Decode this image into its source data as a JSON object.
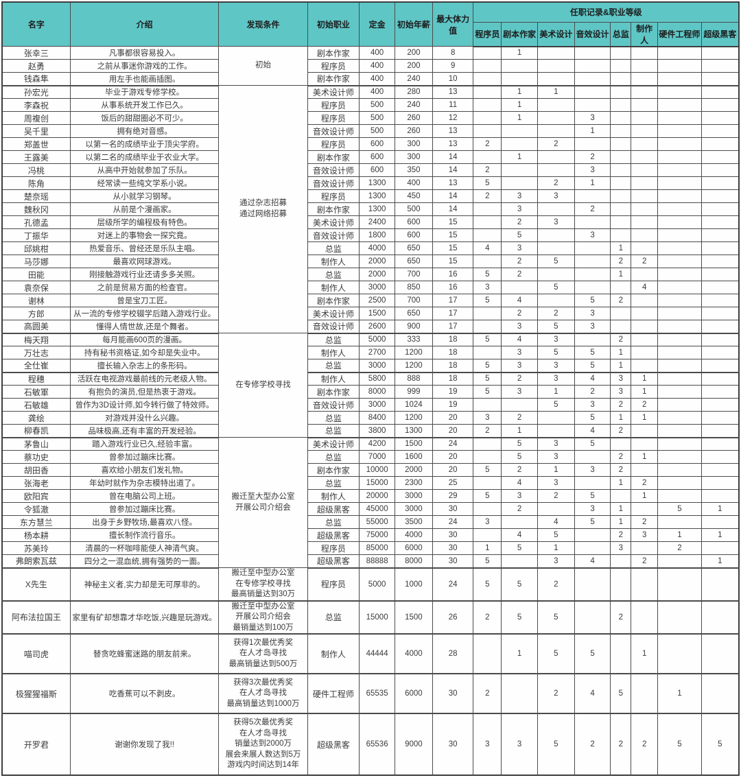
{
  "colors": {
    "header_bg": "#5fc6c6",
    "border": "#3d3d3d",
    "text": "#3a3a3a"
  },
  "header": {
    "columns": [
      "名字",
      "介绍",
      "发现条件",
      "初始职业",
      "定金",
      "初始年薪",
      "最大体力值"
    ],
    "career_group": "任职记录&职业等级",
    "career_columns": [
      "程序员",
      "剧本作家",
      "美术设计",
      "音效设计",
      "总监",
      "制作人",
      "硬件工程师",
      "超级黑客"
    ]
  },
  "rows": [
    [
      "张幸三",
      "凡事都很容易投入。",
      "剧本作家",
      "400",
      "200",
      "8",
      [
        "",
        "1",
        "",
        "",
        "",
        "",
        "",
        ""
      ]
    ],
    [
      "赵勇",
      "之前从事迷你游戏的工作。",
      "程序员",
      "400",
      "200",
      "9",
      [
        "",
        "",
        "",
        "",
        "",
        "",
        "",
        ""
      ]
    ],
    [
      "钱森隼",
      "用左手也能画插图。",
      "剧本作家",
      "400",
      "240",
      "10",
      [
        "",
        "",
        "",
        "",
        "",
        "",
        "",
        ""
      ]
    ],
    [
      "孙宏光",
      "毕业于游戏专修学校。",
      "美术设计师",
      "400",
      "280",
      "13",
      [
        "",
        "1",
        "1",
        "",
        "",
        "",
        "",
        ""
      ]
    ],
    [
      "李森祝",
      "从事系统开发工作已久。",
      "程序员",
      "500",
      "240",
      "11",
      [
        "",
        "1",
        "",
        "",
        "",
        "",
        "",
        ""
      ]
    ],
    [
      "周複创",
      "饭后的甜甜圈必不可少。",
      "程序员",
      "500",
      "260",
      "12",
      [
        "",
        "1",
        "",
        "3",
        "",
        "",
        "",
        ""
      ]
    ],
    [
      "吴千里",
      "拥有绝对音感。",
      "音效设计师",
      "500",
      "260",
      "13",
      [
        "",
        "",
        "",
        "1",
        "",
        "",
        "",
        ""
      ]
    ],
    [
      "郑盖世",
      "以第一名的成绩毕业于顶尖学府。",
      "程序员",
      "600",
      "300",
      "13",
      [
        "2",
        "",
        "2",
        "",
        "",
        "",
        "",
        ""
      ]
    ],
    [
      "王露美",
      "以第二名的成绩毕业于农业大学。",
      "剧本作家",
      "600",
      "300",
      "14",
      [
        "",
        "1",
        "",
        "2",
        "",
        "",
        "",
        ""
      ]
    ],
    [
      "冯桃",
      "从高中开始就参加了乐队。",
      "音效设计师",
      "600",
      "350",
      "14",
      [
        "2",
        "",
        "",
        "3",
        "",
        "",
        "",
        ""
      ]
    ],
    [
      "陈角",
      "经常读一些纯文学系小说。",
      "音效设计师",
      "1300",
      "400",
      "13",
      [
        "5",
        "",
        "2",
        "1",
        "",
        "",
        "",
        ""
      ]
    ],
    [
      "楚奈瑶",
      "从小就学习钢琴。",
      "程序员",
      "1300",
      "450",
      "14",
      [
        "2",
        "3",
        "3",
        "",
        "",
        "",
        "",
        ""
      ]
    ],
    [
      "魏秋冈",
      "从前是个漫画家。",
      "剧本作家",
      "1300",
      "500",
      "14",
      [
        "",
        "3",
        "",
        "2",
        "",
        "",
        "",
        ""
      ]
    ],
    [
      "孔德孟",
      "层级所学的编程极有特色。",
      "美术设计师",
      "2400",
      "600",
      "15",
      [
        "",
        "2",
        "3",
        "",
        "",
        "",
        "",
        ""
      ]
    ],
    [
      "丁振华",
      "对迷上的事物会一探究竟。",
      "音效设计师",
      "1800",
      "600",
      "15",
      [
        "",
        "5",
        "",
        "3",
        "",
        "",
        "",
        ""
      ]
    ],
    [
      "邱姚柑",
      "热爱音乐、曾经还是乐队主唱。",
      "总监",
      "4000",
      "650",
      "15",
      [
        "4",
        "3",
        "",
        "",
        "1",
        "",
        "",
        ""
      ]
    ],
    [
      "马莎娜",
      "最喜欢网球游戏。",
      "制作人",
      "2000",
      "650",
      "15",
      [
        "",
        "2",
        "5",
        "",
        "2",
        "2",
        "",
        ""
      ]
    ],
    [
      "田能",
      "刚接触游戏行业还请多多关照。",
      "总监",
      "2000",
      "700",
      "16",
      [
        "5",
        "2",
        "",
        "",
        "1",
        "",
        "",
        ""
      ]
    ],
    [
      "袁奈保",
      "之前是贸易方面的检查官。",
      "制作人",
      "3000",
      "850",
      "16",
      [
        "3",
        "",
        "5",
        "",
        "",
        "4",
        "",
        ""
      ]
    ],
    [
      "谢林",
      "曾是宝刀工匠。",
      "剧本作家",
      "2500",
      "700",
      "17",
      [
        "5",
        "4",
        "",
        "5",
        "2",
        "",
        "",
        ""
      ]
    ],
    [
      "方郎",
      "从一流的专修学校辍学后踏入游戏行业。",
      "美术设计师",
      "1500",
      "650",
      "17",
      [
        "",
        "2",
        "2",
        "3",
        "",
        "",
        "",
        ""
      ]
    ],
    [
      "高圆美",
      "懂得人情世故,还是个舞者。",
      "音效设计师",
      "2600",
      "900",
      "17",
      [
        "",
        "3",
        "5",
        "3",
        "",
        "",
        "",
        ""
      ]
    ],
    [
      "梅天翔",
      "每月能画600页的漫画。",
      "总监",
      "5000",
      "333",
      "18",
      [
        "5",
        "4",
        "3",
        "",
        "2",
        "",
        "",
        ""
      ]
    ],
    [
      "万壮志",
      "持有秘书资格证,如今却是失业中。",
      "制作人",
      "2700",
      "1200",
      "18",
      [
        "",
        "3",
        "5",
        "5",
        "1",
        "",
        "",
        ""
      ]
    ],
    [
      "全仕崔",
      "擅长输入杂志上的条形码。",
      "总监",
      "3000",
      "1200",
      "18",
      [
        "5",
        "3",
        "3",
        "5",
        "1",
        "",
        "",
        ""
      ]
    ],
    [
      "程穗",
      "活跃在电视游戏最前线的元老级人物。",
      "制作人",
      "5800",
      "888",
      "18",
      [
        "5",
        "2",
        "3",
        "4",
        "3",
        "1",
        "",
        ""
      ]
    ],
    [
      "石敏軍",
      "有抱负的演员,但是热衷于游戏。",
      "剧本作家",
      "8000",
      "999",
      "19",
      [
        "5",
        "3",
        "1",
        "2",
        "3",
        "1",
        "",
        ""
      ]
    ],
    [
      "石敏雄",
      "曾作为3D设计师,如今转行做了特效师。",
      "音效设计师",
      "3000",
      "1024",
      "19",
      [
        "",
        "",
        "5",
        "3",
        "2",
        "2",
        "",
        ""
      ]
    ],
    [
      "龚绘",
      "对游戏并没什么兴趣。",
      "总监",
      "8400",
      "1200",
      "20",
      [
        "3",
        "2",
        "",
        "5",
        "1",
        "1",
        "",
        ""
      ]
    ],
    [
      "柳春凯",
      "品味极高,还有丰富的开发经验。",
      "总监",
      "3800",
      "1300",
      "20",
      [
        "2",
        "1",
        "",
        "4",
        "2",
        "",
        "",
        ""
      ]
    ],
    [
      "茅鲁山",
      "踏入游戏行业已久,经验丰富。",
      "美术设计师",
      "4200",
      "1500",
      "24",
      [
        "",
        "5",
        "3",
        "5",
        "",
        "",
        "",
        ""
      ]
    ],
    [
      "蔡功史",
      "曾参加过蹦床比赛。",
      "总监",
      "7000",
      "1600",
      "20",
      [
        "",
        "5",
        "3",
        "",
        "2",
        "1",
        "",
        ""
      ]
    ],
    [
      "胡田香",
      "喜欢给小朋友们发礼物。",
      "剧本作家",
      "10000",
      "2000",
      "20",
      [
        "5",
        "2",
        "1",
        "3",
        "2",
        "",
        "",
        ""
      ]
    ],
    [
      "张海老",
      "年幼时就作为杂志模特出道了。",
      "总监",
      "15000",
      "2300",
      "25",
      [
        "",
        "4",
        "3",
        "",
        "1",
        "2",
        "",
        ""
      ]
    ],
    [
      "欧阳宾",
      "曾在电脑公司上班。",
      "制作人",
      "20000",
      "3000",
      "29",
      [
        "5",
        "3",
        "2",
        "5",
        "",
        "1",
        "",
        ""
      ]
    ],
    [
      "令狐澈",
      "曾参加过蹦床比赛。",
      "超级黑客",
      "45000",
      "3000",
      "30",
      [
        "",
        "2",
        "",
        "3",
        "1",
        "",
        "5",
        "1"
      ]
    ],
    [
      "东方慧兰",
      "出身于乡野牧场,最喜欢八怪。",
      "总监",
      "55000",
      "3500",
      "24",
      [
        "3",
        "",
        "4",
        "5",
        "1",
        "2",
        "",
        ""
      ]
    ],
    [
      "杨本耕",
      "擅长制作流行音乐。",
      "超级黑客",
      "75000",
      "4000",
      "30",
      [
        "",
        "4",
        "5",
        "",
        "2",
        "3",
        "1",
        "1"
      ]
    ],
    [
      "苏美玲",
      "清晨的一杯咖啡能使人神清气爽。",
      "程序员",
      "85000",
      "6000",
      "30",
      [
        "1",
        "5",
        "1",
        "",
        "3",
        "",
        "2",
        ""
      ]
    ],
    [
      "弗朗索瓦兹",
      "四分之一混血统,拥有强势的一面。",
      "超级黑客",
      "88888",
      "8000",
      "30",
      [
        "5",
        "",
        "3",
        "4",
        "",
        "2",
        "",
        "1"
      ]
    ],
    [
      "X先生",
      "神秘主义者,实力却是无可厚非的。",
      "程序员",
      "5000",
      "1000",
      "24",
      [
        "5",
        "5",
        "2",
        "",
        "",
        "",
        "",
        ""
      ]
    ],
    [
      "阿布法拉国王",
      "家里有矿却想靠才华吃饭,兴趣是玩游戏。",
      "总监",
      "15000",
      "1500",
      "26",
      [
        "2",
        "5",
        "5",
        "",
        "2",
        "",
        "",
        ""
      ]
    ],
    [
      "喵司虎",
      "替贪吃蜂蜜迷路的朋友前来。",
      "制作人",
      "44444",
      "4000",
      "28",
      [
        "",
        "1",
        "5",
        "5",
        "",
        "1",
        "",
        ""
      ]
    ],
    [
      "极猩猩福斯",
      "吃香蕉可以不剥皮。",
      "硬件工程师",
      "65535",
      "6000",
      "30",
      [
        "2",
        "",
        "2",
        "4",
        "5",
        "",
        "1",
        ""
      ]
    ],
    [
      "开罗君",
      "谢谢你发现了我!!",
      "超级黑客",
      "65536",
      "9000",
      "30",
      [
        "3",
        "3",
        "5",
        "2",
        "2",
        "2",
        "5",
        "5"
      ]
    ]
  ],
  "condition_groups": [
    {
      "start": 0,
      "span": 3,
      "lines": [
        "初始"
      ]
    },
    {
      "start": 3,
      "span": 19,
      "lines": [
        "通过杂志招募",
        "通过网络招募"
      ]
    },
    {
      "start": 22,
      "span": 8,
      "lines": [
        "在专修学校寻找"
      ]
    },
    {
      "start": 30,
      "span": 10,
      "lines": [
        "搬迁至大型办公室",
        "开展公司介绍会"
      ]
    },
    {
      "start": 40,
      "span": 1,
      "lines": [
        "搬迁至中型办公室",
        "在专修学校寻找",
        "最高销量达到30万"
      ]
    },
    {
      "start": 41,
      "span": 1,
      "lines": [
        "搬迁至中型办公室",
        "开展公司介绍会",
        "最销量达到100万"
      ]
    },
    {
      "start": 42,
      "span": 1,
      "lines": [
        "获得1次最优秀奖",
        "在人才岛寻找",
        "最高销量达到500万"
      ]
    },
    {
      "start": 43,
      "span": 1,
      "lines": [
        "获得3次最优秀奖",
        "在人才岛寻找",
        "最高销量达到1000万"
      ]
    },
    {
      "start": 44,
      "span": 1,
      "lines": [
        "获得5次最优秀奖",
        "在人才岛寻找",
        "销量达到2000万",
        "展会来展人数达到5万",
        "游戏内时间达到14年"
      ]
    }
  ],
  "row_heights": {
    "40": 46,
    "41": 48,
    "42": 58,
    "43": 58,
    "44": 90
  },
  "thick_after": [
    2,
    21,
    24,
    29,
    39,
    40,
    41,
    42,
    43
  ]
}
